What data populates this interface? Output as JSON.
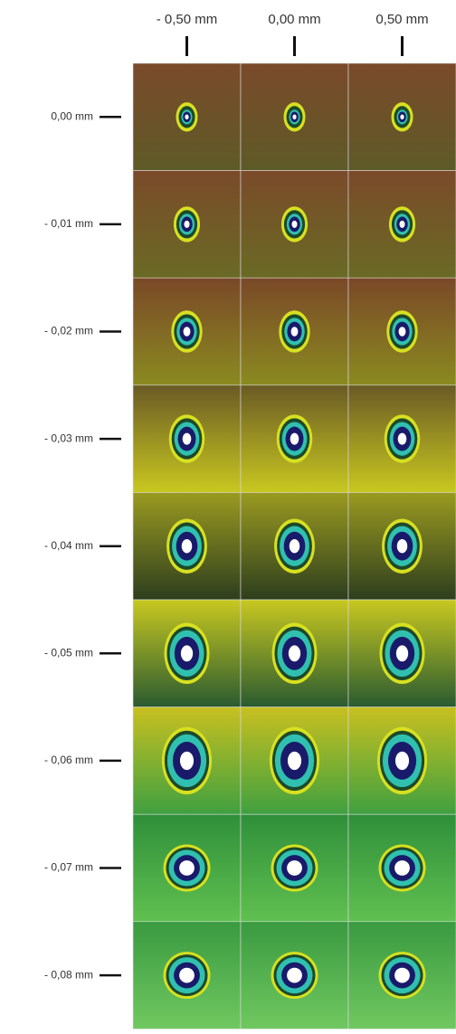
{
  "columns": [
    "- 0,50 mm",
    "0,00 mm",
    "0,50 mm"
  ],
  "rows": [
    "0,00 mm",
    "- 0,01 mm",
    "- 0,02 mm",
    "- 0,03 mm",
    "- 0,04 mm",
    "- 0,05 mm",
    "- 0,06 mm",
    "- 0,07 mm",
    "- 0,08 mm"
  ]
}
